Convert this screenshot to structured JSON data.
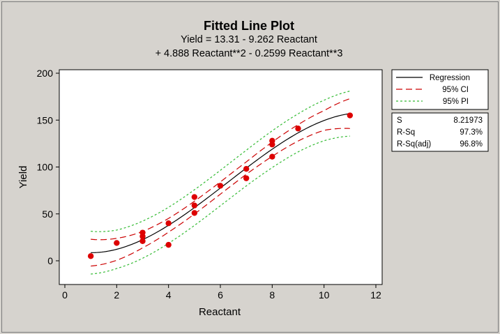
{
  "chart_data": {
    "type": "scatter",
    "title": "Fitted Line Plot",
    "equation_line1": "Yield =  13.31 - 9.262 Reactant",
    "equation_line2": "+ 4.888 Reactant**2 - 0.2599 Reactant**3",
    "xlabel": "Reactant",
    "ylabel": "Yield",
    "xlim": [
      0,
      12
    ],
    "ylim": [
      -25,
      205
    ],
    "xticks": [
      0,
      2,
      4,
      6,
      8,
      10,
      12
    ],
    "yticks": [
      0,
      50,
      100,
      150,
      200
    ],
    "grid": false,
    "legend_position": "right",
    "coefficients": {
      "b0": 13.31,
      "b1": -9.262,
      "b2": 4.888,
      "b3": -0.2599
    },
    "ci_halfwidth": {
      "x": [
        1,
        2,
        3,
        4,
        5,
        6,
        7,
        8,
        9,
        10,
        11
      ],
      "values": [
        14.3,
        11.7,
        8.7,
        7.3,
        6.8,
        6.5,
        6.6,
        7.6,
        8.7,
        10.5,
        15.9
      ]
    },
    "pi_halfwidth": {
      "x": [
        1,
        2,
        3,
        4,
        5,
        6,
        7,
        8,
        9,
        10,
        11
      ],
      "values": [
        22.8,
        20.5,
        19.8,
        19.2,
        19.0,
        18.9,
        19.0,
        19.6,
        20.3,
        21.6,
        24.0
      ]
    },
    "points": [
      {
        "x": 1,
        "y": 5
      },
      {
        "x": 2,
        "y": 19
      },
      {
        "x": 3,
        "y": 30
      },
      {
        "x": 3,
        "y": 26
      },
      {
        "x": 3,
        "y": 21
      },
      {
        "x": 4,
        "y": 40
      },
      {
        "x": 4,
        "y": 17
      },
      {
        "x": 5,
        "y": 68
      },
      {
        "x": 5,
        "y": 59
      },
      {
        "x": 5,
        "y": 51
      },
      {
        "x": 6,
        "y": 80
      },
      {
        "x": 7,
        "y": 98
      },
      {
        "x": 7,
        "y": 88
      },
      {
        "x": 8,
        "y": 128
      },
      {
        "x": 8,
        "y": 124
      },
      {
        "x": 8,
        "y": 111
      },
      {
        "x": 9,
        "y": 141
      },
      {
        "x": 11,
        "y": 155
      }
    ],
    "series": [
      {
        "name": "Regression",
        "style": "solid",
        "color": "#000000"
      },
      {
        "name": "95% CI",
        "style": "dashed",
        "color": "#cc0000"
      },
      {
        "name": "95% PI",
        "style": "dashed",
        "color": "#33bb33"
      }
    ],
    "point_color": "#dd0000",
    "stats": [
      {
        "label": "S",
        "value": "8.21973"
      },
      {
        "label": "R-Sq",
        "value": "97.3%"
      },
      {
        "label": "R-Sq(adj)",
        "value": "96.8%"
      }
    ]
  }
}
